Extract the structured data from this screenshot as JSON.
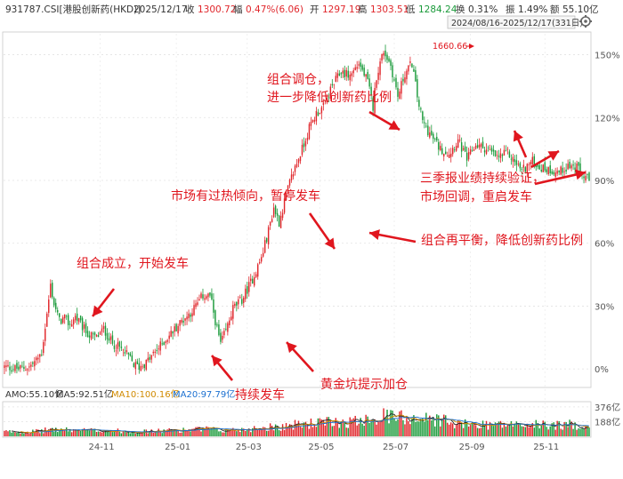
{
  "header": {
    "code": "931787.CSI[港股创新药(HKD)]",
    "date": "2025/12/17",
    "close_label": "收",
    "close": "1300.72",
    "change_label": "幅",
    "change": "0.47%(6.06)",
    "open_label": "开",
    "open": "1297.19",
    "high_label": "高",
    "high": "1303.51",
    "low_label": "低",
    "low": "1284.24",
    "turnover_label": "换",
    "turnover": "0.31%",
    "amplitude_label": "振",
    "amplitude": "1.49%",
    "amount_label": "额",
    "amount": "55.10亿",
    "range": "2024/08/16-2025/12/17(331日)"
  },
  "volume_header": {
    "amo": "AMO:55.10亿",
    "ma5": "MA5:92.51亿",
    "ma10": "MA10:100.16亿",
    "ma20": "MA20:97.79亿"
  },
  "colors": {
    "up": "#e0262b",
    "down": "#1a9a3a",
    "annotation": "#e0161e",
    "ma5": "#222222",
    "ma10": "#d08a00",
    "ma20": "#1a6fd0"
  },
  "annotations": [
    {
      "lines": [
        "组合成立，开始发车"
      ]
    },
    {
      "lines": [
        "持续发车"
      ]
    },
    {
      "lines": [
        "市场有过热倾向，暂停发车"
      ]
    },
    {
      "lines": [
        "黄金坑提示加仓"
      ]
    },
    {
      "lines": [
        "组合调仓，",
        "进一步降低创新药比例"
      ]
    },
    {
      "lines": [
        "组合再平衡，降低创新药比例"
      ]
    },
    {
      "lines": [
        "三季报业绩持续验证，",
        "市场回调，重启发车"
      ]
    }
  ],
  "peak_label": "1660.66",
  "chart_data": {
    "type": "candlestick",
    "x_ticks": [
      "24-11",
      "25-01",
      "25-03",
      "25-05",
      "25-07",
      "25-09",
      "25-11"
    ],
    "y_ticks": [
      "0%",
      "30%",
      "60%",
      "90%",
      "120%",
      "150%"
    ],
    "ylim": [
      -8,
      160
    ],
    "volume_ticks": [
      "376亿",
      "188亿"
    ],
    "volume_ylim": [
      0,
      420
    ],
    "close_path": [
      [
        0,
        1
      ],
      [
        8,
        0
      ],
      [
        14,
        1
      ],
      [
        18,
        4
      ],
      [
        21,
        8
      ],
      [
        24,
        26
      ],
      [
        26,
        40
      ],
      [
        28,
        31
      ],
      [
        31,
        23
      ],
      [
        34,
        24
      ],
      [
        37,
        21
      ],
      [
        40,
        25
      ],
      [
        44,
        20
      ],
      [
        48,
        16
      ],
      [
        52,
        15
      ],
      [
        56,
        19
      ],
      [
        61,
        12
      ],
      [
        65,
        10
      ],
      [
        70,
        6
      ],
      [
        73,
        2
      ],
      [
        76,
        1
      ],
      [
        80,
        3
      ],
      [
        85,
        8
      ],
      [
        90,
        13
      ],
      [
        95,
        18
      ],
      [
        100,
        23
      ],
      [
        104,
        26
      ],
      [
        108,
        30
      ],
      [
        112,
        35
      ],
      [
        116,
        35
      ],
      [
        118,
        27
      ],
      [
        120,
        19
      ],
      [
        122,
        12
      ],
      [
        125,
        18
      ],
      [
        129,
        29
      ],
      [
        134,
        33
      ],
      [
        140,
        43
      ],
      [
        145,
        53
      ],
      [
        149,
        66
      ],
      [
        152,
        77
      ],
      [
        155,
        70
      ],
      [
        159,
        83
      ],
      [
        163,
        94
      ],
      [
        168,
        105
      ],
      [
        172,
        115
      ],
      [
        176,
        122
      ],
      [
        180,
        125
      ],
      [
        185,
        135
      ],
      [
        190,
        142
      ],
      [
        195,
        140
      ],
      [
        200,
        146
      ],
      [
        205,
        137
      ],
      [
        208,
        125
      ],
      [
        210,
        140
      ],
      [
        214,
        152
      ],
      [
        218,
        145
      ],
      [
        222,
        130
      ],
      [
        226,
        141
      ],
      [
        230,
        146
      ],
      [
        233,
        130
      ],
      [
        236,
        118
      ],
      [
        241,
        111
      ],
      [
        246,
        105
      ],
      [
        251,
        103
      ],
      [
        256,
        109
      ],
      [
        261,
        100
      ],
      [
        266,
        107
      ],
      [
        272,
        105
      ],
      [
        278,
        101
      ],
      [
        284,
        103
      ],
      [
        288,
        99
      ],
      [
        292,
        95
      ],
      [
        298,
        99
      ],
      [
        303,
        96
      ],
      [
        308,
        95
      ],
      [
        313,
        94
      ],
      [
        318,
        97
      ],
      [
        323,
        96
      ],
      [
        326,
        93
      ],
      [
        330,
        90
      ]
    ]
  }
}
